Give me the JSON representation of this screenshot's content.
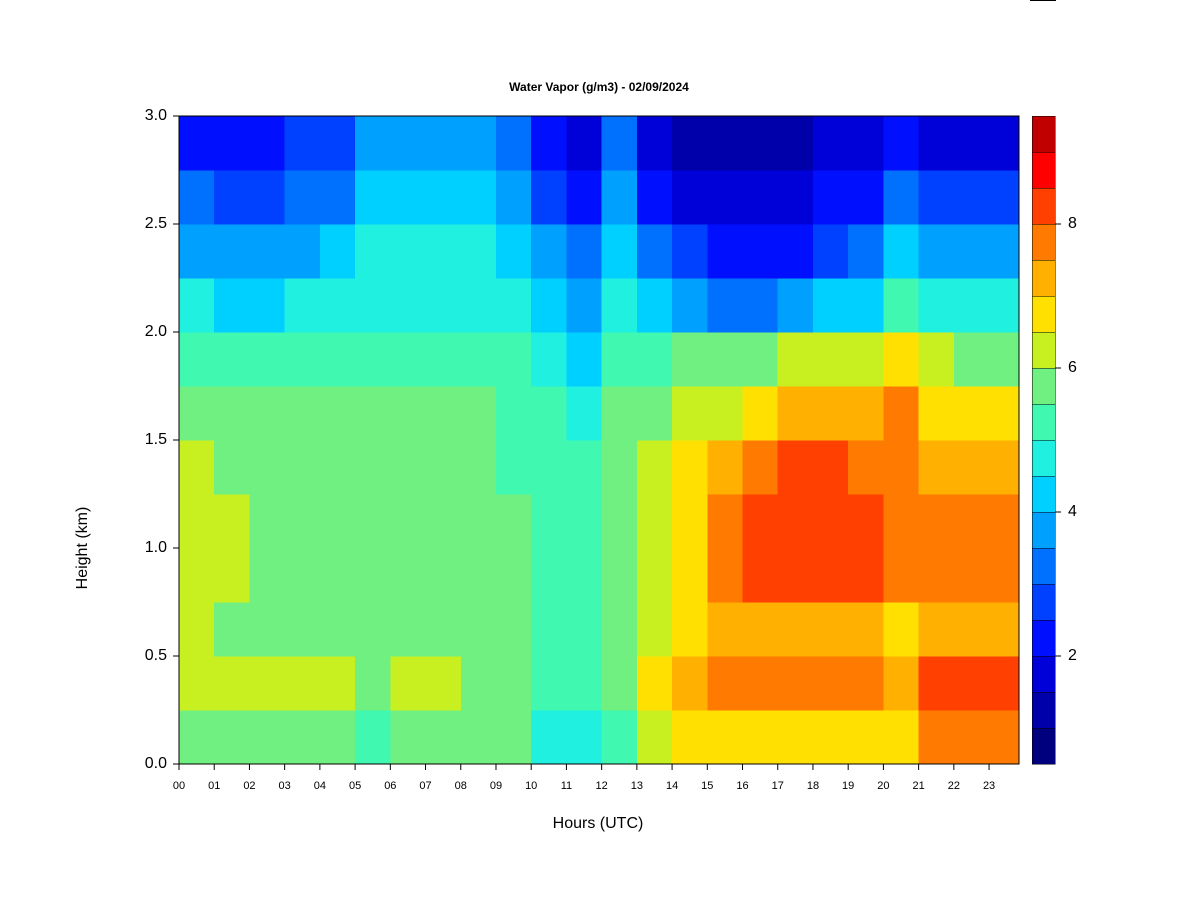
{
  "chart_data": {
    "type": "heatmap",
    "title": "Water Vapor (g/m3) - 02/09/2024",
    "x_label": "Hours (UTC)",
    "y_label": "Height (km)",
    "x": [
      0,
      1,
      2,
      3,
      4,
      5,
      6,
      7,
      8,
      9,
      10,
      11,
      12,
      13,
      14,
      15,
      16,
      17,
      18,
      19,
      20,
      21,
      22,
      23
    ],
    "y": [
      0,
      0.25,
      0.5,
      0.75,
      1,
      1.25,
      1.5,
      1.75,
      2,
      2.25,
      2.5,
      2.75
    ],
    "z": [
      [
        5.5,
        5.5,
        5.5,
        5.5,
        5.5,
        5,
        5.5,
        5.5,
        5.5,
        5.5,
        4.5,
        4.5,
        5,
        6,
        6.5,
        6.5,
        6.5,
        6.5,
        6.5,
        6.5,
        6.5,
        7.5,
        7.5,
        7.5
      ],
      [
        6,
        6,
        6,
        6,
        6,
        5.5,
        6,
        6,
        5.5,
        5.5,
        5,
        5,
        5.5,
        6.5,
        7,
        7.5,
        7.5,
        7.5,
        7.5,
        7.5,
        7,
        8,
        8,
        8
      ],
      [
        6,
        5.5,
        5.5,
        5.5,
        5.5,
        5.5,
        5.5,
        5.5,
        5.5,
        5.5,
        5,
        5,
        5.5,
        6,
        6.5,
        7,
        7,
        7,
        7,
        7,
        6.5,
        7,
        7,
        7
      ],
      [
        6,
        6,
        5.5,
        5.5,
        5.5,
        5.5,
        5.5,
        5.5,
        5.5,
        5.5,
        5,
        5,
        5.5,
        6,
        6.5,
        7.5,
        8,
        8,
        8,
        8,
        7.5,
        7.5,
        7.5,
        7.5
      ],
      [
        6,
        6,
        5.5,
        5.5,
        5.5,
        5.5,
        5.5,
        5.5,
        5.5,
        5.5,
        5,
        5,
        5.5,
        6,
        6.5,
        7.5,
        8,
        8,
        8,
        8,
        7.5,
        7.5,
        7.5,
        7.5
      ],
      [
        6,
        5.5,
        5.5,
        5.5,
        5.5,
        5.5,
        5.5,
        5.5,
        5.5,
        5,
        5,
        5,
        5.5,
        6,
        6.5,
        7,
        7.5,
        8,
        8,
        7.5,
        7.5,
        7,
        7,
        7
      ],
      [
        5.5,
        5.5,
        5.5,
        5.5,
        5.5,
        5.5,
        5.5,
        5.5,
        5.5,
        5,
        5,
        4.5,
        5.5,
        5.5,
        6,
        6,
        6.5,
        7,
        7,
        7,
        7.5,
        6.5,
        6.5,
        6.5
      ],
      [
        5,
        5,
        5,
        5,
        5,
        5,
        5,
        5,
        5,
        5,
        4.5,
        4,
        5,
        5,
        5.5,
        5.5,
        5.5,
        6,
        6,
        6,
        6.5,
        6,
        5.5,
        5.5
      ],
      [
        4.5,
        4,
        4,
        4.5,
        4.5,
        4.5,
        4.5,
        4.5,
        4.5,
        4.5,
        4,
        3.5,
        4.5,
        4,
        3.5,
        3,
        3,
        3.5,
        4,
        4,
        5,
        4.5,
        4.5,
        4.5
      ],
      [
        3.5,
        3.5,
        3.5,
        3.5,
        4,
        4.5,
        4.5,
        4.5,
        4.5,
        4,
        3.5,
        3,
        4,
        3,
        2.5,
        2,
        2,
        2,
        2.5,
        3,
        4,
        3.5,
        3.5,
        3.5
      ],
      [
        3,
        2.5,
        2.5,
        3,
        3,
        4,
        4,
        4,
        4,
        3.5,
        2.5,
        2,
        3.5,
        2,
        1.5,
        1.5,
        1.5,
        1.5,
        2,
        2,
        3,
        2.5,
        2.5,
        2.5
      ],
      [
        2,
        2,
        2,
        2.5,
        2.5,
        3.5,
        3.5,
        3.5,
        3.5,
        3,
        2,
        1.5,
        3,
        1.5,
        1,
        1,
        1,
        1,
        1.5,
        1.5,
        2,
        1.5,
        1.5,
        1.5
      ]
    ],
    "xlim": [
      0,
      23.85
    ],
    "ylim": [
      0,
      3
    ],
    "xticks": [
      {
        "value": 0,
        "label": "00"
      },
      {
        "value": 1,
        "label": "01"
      },
      {
        "value": 2,
        "label": "02"
      },
      {
        "value": 3,
        "label": "03"
      },
      {
        "value": 4,
        "label": "04"
      },
      {
        "value": 5,
        "label": "05"
      },
      {
        "value": 6,
        "label": "06"
      },
      {
        "value": 7,
        "label": "07"
      },
      {
        "value": 8,
        "label": "08"
      },
      {
        "value": 9,
        "label": "09"
      },
      10,
      11,
      12,
      13,
      14,
      15,
      16,
      17,
      18,
      19,
      20,
      21,
      22,
      23
    ],
    "yticks": [
      {
        "value": 0,
        "label": "0.0"
      },
      0.5,
      {
        "value": 1,
        "label": "1.0"
      },
      1.5,
      {
        "value": 2,
        "label": "2.0"
      },
      2.5,
      {
        "value": 3,
        "label": "3.0"
      }
    ],
    "levels": [
      0.5,
      1,
      1.5,
      2,
      2.5,
      3,
      3.5,
      4,
      4.5,
      5,
      5.5,
      6,
      6.5,
      7,
      7.5,
      8,
      8.5,
      9,
      9.5
    ],
    "colors": [
      "#00007f",
      "#0000aa",
      "#0000d8",
      "#0010ff",
      "#0040ff",
      "#0070ff",
      "#00a0ff",
      "#00d0ff",
      "#20f0e0",
      "#40f8b0",
      "#70f080",
      "#c8f020",
      "#ffe000",
      "#ffb000",
      "#ff7a00",
      "#ff4000",
      "#ff0000",
      "#c00000",
      "#800000"
    ],
    "colorbar_ticks": [
      2,
      4,
      6,
      8
    ]
  }
}
